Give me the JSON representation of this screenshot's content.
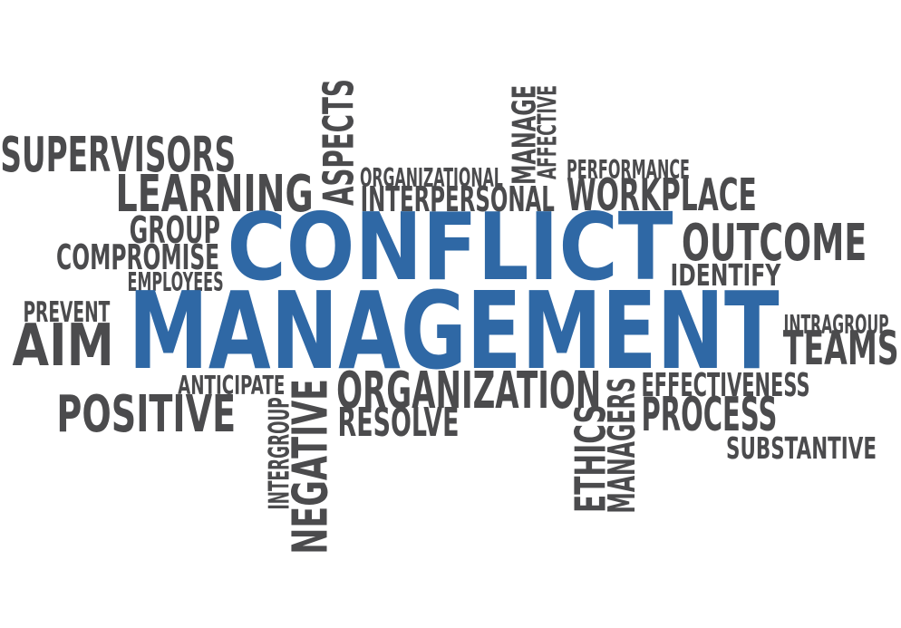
{
  "palette": {
    "accent": "#2f68a5",
    "text": "#4b4b4d",
    "background": "#ffffff"
  },
  "words": {
    "supervisors": "SUPERVISORS",
    "learning": "LEARNING",
    "group": "GROUP",
    "compromise": "COMPROMISE",
    "employees": "EMPLOYEES",
    "prevent": "PREVENT",
    "aim": "AIM",
    "anticipate": "ANTICIPATE",
    "positive": "POSITIVE",
    "aspects": "ASPECTS",
    "organizational": "ORGANIZATIONAL",
    "interpersonal": "INTERPERSONAL",
    "manage": "MANAGE",
    "affective": "AFFECTIVE",
    "performance": "PERFORMANCE",
    "workplace": "WORKPLACE",
    "conflict": "CONFLICT",
    "management": "MANAGEMENT",
    "outcome": "OUTCOME",
    "identify": "IDENTIFY",
    "intragroup": "INTRAGROUP",
    "teams": "TEAMS",
    "organization": "ORGANIZATION",
    "resolve": "RESOLVE",
    "intergroup": "INTERGROUP",
    "negative": "NEGATIVE",
    "ethics": "ETHICS",
    "managers": "MANAGERS",
    "effectiveness": "EFFECTIVENESS",
    "process": "PROCESS",
    "substantive": "SUBSTANTIVE"
  }
}
